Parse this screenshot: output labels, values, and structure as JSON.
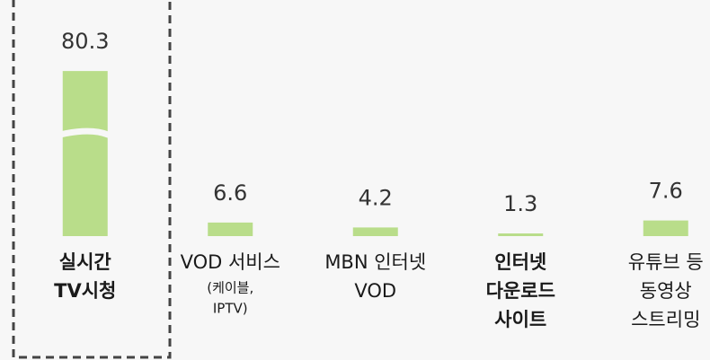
{
  "chart_data": {
    "type": "bar",
    "categories": [
      [
        "실시간",
        "TV시청"
      ],
      [
        "VOD 서비스"
      ],
      [
        "MBN 인터넷",
        "VOD"
      ],
      [
        "인터넷",
        "다운로드",
        "사이트"
      ],
      [
        "유튜브 등",
        "동영상",
        "스트리밍"
      ]
    ],
    "category_notes": [
      null,
      [
        "(케이블,",
        "IPTV)"
      ],
      null,
      null,
      null
    ],
    "bold_categories": [
      0,
      3
    ],
    "values": [
      80.3,
      6.6,
      4.2,
      1.3,
      7.6
    ],
    "color": "#b9dd8a",
    "ylim": [
      0,
      100
    ],
    "highlight": 0
  }
}
